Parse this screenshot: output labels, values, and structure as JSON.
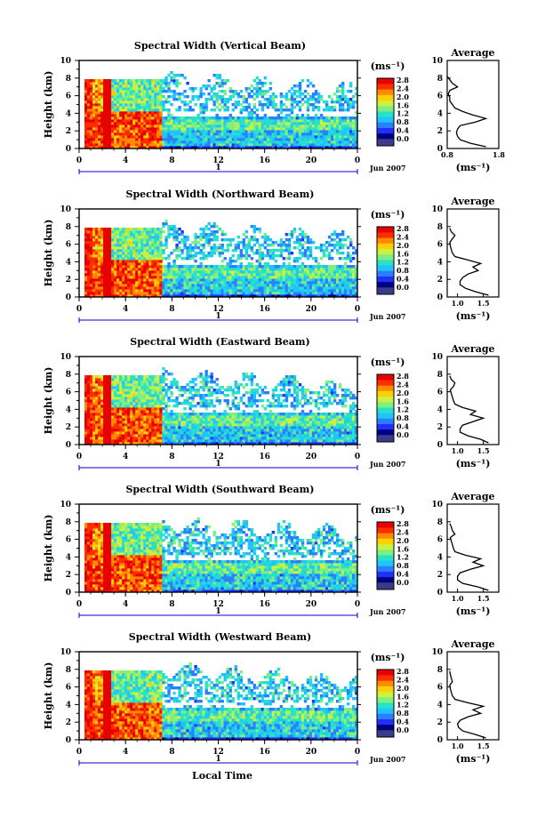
{
  "colors": {
    "scale": [
      "#000080",
      "#1f30ff",
      "#2a7fff",
      "#1fc4ff",
      "#27e2c8",
      "#7ff07f",
      "#d0f040",
      "#ffd000",
      "#ff8a00",
      "#ff2d00",
      "#e60000"
    ],
    "noise": "#3b3b8c",
    "background": "#ffffff",
    "missing": "#ffffff"
  },
  "common": {
    "xaxis_label": "Local Time",
    "xticks": [
      "0",
      "4",
      "8",
      "12",
      "16",
      "20",
      "0"
    ],
    "day_label": "1",
    "date_label": "Jun 2007",
    "yaxis_label": "Height (km)",
    "yticks": [
      "0",
      "2",
      "4",
      "6",
      "8",
      "10"
    ],
    "colorbar_unit": "(ms⁻¹)",
    "colorbar_ticks": [
      "0.0",
      "0.4",
      "0.8",
      "1.2",
      "1.6",
      "2.0",
      "2.4",
      "2.8"
    ],
    "avg_title": "Average",
    "avg_unit": "(ms⁻¹)",
    "avg_yticks": [
      "0",
      "2",
      "4",
      "6",
      "8",
      "10"
    ]
  },
  "chart_data": [
    {
      "type": "heatmap",
      "title": "Spectral Width (Vertical Beam)",
      "xlabel": "Local Time",
      "ylabel": "Height (km)",
      "xlim": [
        0,
        24
      ],
      "ylim": [
        0,
        10
      ],
      "colorbar": {
        "label": "(ms⁻¹)",
        "range": [
          0,
          2.8
        ]
      },
      "average_profile": {
        "title": "Average",
        "xlabel": "(ms⁻¹)",
        "xticks": [
          "0.8",
          "1.8"
        ],
        "xlim": [
          0.8,
          1.8
        ],
        "heights": [
          0.2,
          0.6,
          1.0,
          1.4,
          1.8,
          2.2,
          2.6,
          3.0,
          3.4,
          3.8,
          4.2,
          4.6,
          5.0,
          5.4,
          5.8,
          6.2,
          6.6,
          7.0,
          7.4,
          7.8,
          8.2
        ],
        "values": [
          1.55,
          1.25,
          1.05,
          1.0,
          0.98,
          1.0,
          1.05,
          1.35,
          1.55,
          1.3,
          1.1,
          0.95,
          0.9,
          0.85,
          0.85,
          0.82,
          0.85,
          1.0,
          0.9,
          0.85,
          0.8
        ]
      }
    },
    {
      "type": "heatmap",
      "title": "Spectral Width (Northward Beam)",
      "xlabel": "Local Time",
      "ylabel": "Height (km)",
      "xlim": [
        0,
        24
      ],
      "ylim": [
        0,
        10
      ],
      "colorbar": {
        "label": "(ms⁻¹)",
        "range": [
          0,
          2.8
        ]
      },
      "average_profile": {
        "title": "Average",
        "xlabel": "(ms⁻¹)",
        "xticks": [
          "1.0",
          "1.5"
        ],
        "xlim": [
          0.8,
          1.8
        ],
        "heights": [
          0.2,
          0.6,
          1.0,
          1.4,
          1.8,
          2.2,
          2.6,
          3.0,
          3.4,
          3.8,
          4.2,
          4.6,
          5.0,
          5.4,
          5.8,
          6.2,
          6.6,
          7.0,
          7.4,
          7.8
        ],
        "values": [
          1.6,
          1.35,
          1.15,
          1.05,
          1.05,
          1.1,
          1.2,
          1.4,
          1.3,
          1.45,
          1.2,
          0.95,
          0.9,
          0.88,
          0.86,
          0.85,
          0.9,
          0.95,
          0.88,
          0.85
        ]
      }
    },
    {
      "type": "heatmap",
      "title": "Spectral Width (Eastward Beam)",
      "xlabel": "Local Time",
      "ylabel": "Height (km)",
      "xlim": [
        0,
        24
      ],
      "ylim": [
        0,
        10
      ],
      "colorbar": {
        "label": "(ms⁻¹)",
        "range": [
          0,
          2.8
        ]
      },
      "average_profile": {
        "title": "Average",
        "xlabel": "(ms⁻¹)",
        "xticks": [
          "1.0",
          "1.5"
        ],
        "xlim": [
          0.8,
          1.8
        ],
        "heights": [
          0.2,
          0.6,
          1.0,
          1.4,
          1.8,
          2.2,
          2.6,
          3.0,
          3.4,
          3.8,
          4.2,
          4.6,
          5.0,
          5.4,
          5.8,
          6.2,
          6.6,
          7.0,
          7.4,
          7.8
        ],
        "values": [
          1.6,
          1.45,
          1.2,
          1.05,
          1.05,
          1.1,
          1.3,
          1.5,
          1.25,
          1.35,
          1.1,
          0.95,
          0.92,
          0.9,
          0.88,
          0.86,
          0.92,
          0.95,
          0.88,
          0.85
        ]
      }
    },
    {
      "type": "heatmap",
      "title": "Spectral Width (Southward Beam)",
      "xlabel": "Local Time",
      "ylabel": "Height (km)",
      "xlim": [
        0,
        24
      ],
      "ylim": [
        0,
        10
      ],
      "colorbar": {
        "label": "(ms⁻¹)",
        "range": [
          0,
          2.8
        ]
      },
      "average_profile": {
        "title": "Average",
        "xlabel": "(ms⁻¹)",
        "xticks": [
          "1.0",
          "1.5"
        ],
        "xlim": [
          0.8,
          1.8
        ],
        "heights": [
          0.2,
          0.6,
          1.0,
          1.4,
          1.8,
          2.2,
          2.6,
          3.0,
          3.4,
          3.8,
          4.2,
          4.6,
          5.0,
          5.4,
          5.8,
          6.2,
          6.6,
          7.0,
          7.4,
          7.8
        ],
        "values": [
          1.6,
          1.4,
          1.1,
          1.0,
          1.0,
          1.05,
          1.25,
          1.5,
          1.3,
          1.45,
          1.15,
          0.95,
          0.92,
          0.9,
          0.88,
          0.86,
          0.95,
          0.9,
          0.88,
          0.85
        ]
      }
    },
    {
      "type": "heatmap",
      "title": "Spectral Width (Westward Beam)",
      "xlabel": "Local Time",
      "ylabel": "Height (km)",
      "xlim": [
        0,
        24
      ],
      "ylim": [
        0,
        10
      ],
      "colorbar": {
        "label": "(ms⁻¹)",
        "range": [
          0,
          2.8
        ]
      },
      "average_profile": {
        "title": "Average",
        "xlabel": "(ms⁻¹)",
        "xticks": [
          "1.0",
          "1.5"
        ],
        "xlim": [
          0.8,
          1.8
        ],
        "heights": [
          0.2,
          0.6,
          1.0,
          1.4,
          1.8,
          2.2,
          2.6,
          3.0,
          3.4,
          3.8,
          4.2,
          4.6,
          5.0,
          5.4,
          5.8,
          6.2,
          6.6,
          7.0,
          7.4,
          7.8
        ],
        "values": [
          1.55,
          1.35,
          1.1,
          1.02,
          1.0,
          1.05,
          1.2,
          1.45,
          1.3,
          1.5,
          1.2,
          0.95,
          0.9,
          0.88,
          0.86,
          0.85,
          0.9,
          0.88,
          0.86,
          0.85
        ]
      }
    }
  ]
}
